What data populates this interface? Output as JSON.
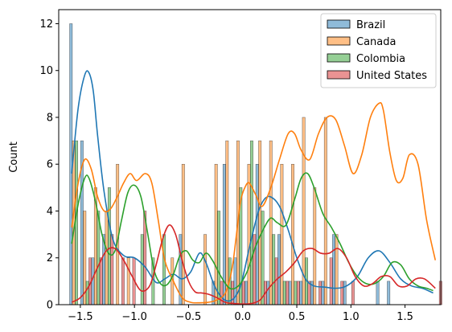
{
  "chart_data": {
    "type": "bar",
    "subtype": "histogram-with-kde",
    "title": "",
    "xlabel": "",
    "ylabel": "Count",
    "xlim": [
      -1.7,
      1.83
    ],
    "ylim": [
      0,
      12.6
    ],
    "xticks": [
      -1.5,
      -1.0,
      -0.5,
      0.0,
      0.5,
      1.0,
      1.5
    ],
    "xtick_labels": [
      "−1.5",
      "−1.0",
      "−0.5",
      "0.0",
      "0.5",
      "1.0",
      "1.5"
    ],
    "yticks": [
      0,
      2,
      4,
      6,
      8,
      10,
      12
    ],
    "ytick_labels": [
      "0",
      "2",
      "4",
      "6",
      "8",
      "10",
      "12"
    ],
    "grid": false,
    "legend_position": "top-right",
    "bin_edges": [
      -1.5993,
      -1.4981,
      -1.3969,
      -1.2957,
      -1.1945,
      -1.0933,
      -0.9921,
      -0.8909,
      -0.7897,
      -0.6885,
      -0.5873,
      -0.4861,
      -0.3849,
      -0.2837,
      -0.1825,
      -0.0813,
      0.0199,
      0.1211,
      0.2223,
      0.3235,
      0.4247,
      0.5259,
      0.6271,
      0.7283,
      0.8295,
      0.9307,
      1.0319,
      1.1331,
      1.2343,
      1.3355,
      1.4367,
      1.5379,
      1.6391,
      1.7403,
      1.8415
    ],
    "series": [
      {
        "name": "Brazil",
        "color": "#1f77b4",
        "values": [
          12,
          7,
          2,
          3,
          0,
          0,
          0,
          0,
          0,
          0,
          3,
          0,
          0,
          1,
          6,
          2,
          1,
          6,
          1,
          3,
          1,
          1,
          1,
          1,
          3,
          1,
          0,
          0,
          1,
          1,
          0,
          0,
          0,
          0
        ]
      },
      {
        "name": "Canada",
        "color": "#ff7f0e",
        "values": [
          7,
          4,
          5,
          4,
          6,
          2,
          0,
          0,
          0,
          2,
          6,
          0,
          3,
          6,
          7,
          7,
          6,
          7,
          7,
          6,
          6,
          8,
          5,
          8,
          3,
          0,
          0,
          0,
          0,
          0,
          0,
          0,
          0,
          0
        ]
      },
      {
        "name": "Colombia",
        "color": "#2ca02c",
        "values": [
          7,
          1,
          4,
          5,
          0,
          0,
          3,
          2,
          3,
          0,
          0,
          0,
          0,
          4,
          2,
          5,
          7,
          4,
          3,
          1,
          1,
          2,
          0,
          0,
          0,
          0,
          0,
          0,
          0,
          0,
          0,
          0,
          0,
          0
        ]
      },
      {
        "name": "United States",
        "color": "#d62728",
        "values": [
          0,
          2,
          2,
          3,
          2,
          2,
          4,
          0,
          0,
          0,
          0,
          0,
          0,
          1,
          1,
          1,
          3,
          1,
          2,
          1,
          1,
          1,
          1,
          2,
          1,
          1,
          0,
          0,
          0,
          0,
          0,
          0,
          0,
          1
        ]
      }
    ],
    "kde": [
      {
        "name": "Brazil",
        "x": [
          -1.58,
          -1.52,
          -1.46,
          -1.42,
          -1.38,
          -1.34,
          -1.28,
          -1.2,
          -1.1,
          -1.0,
          -0.9,
          -0.8,
          -0.72,
          -0.64,
          -0.56,
          -0.48,
          -0.4,
          -0.34,
          -0.26,
          -0.18,
          -0.1,
          -0.02,
          0.06,
          0.14,
          0.2,
          0.26,
          0.34,
          0.42,
          0.5,
          0.58,
          0.66,
          0.76,
          0.86,
          0.96,
          1.06,
          1.16,
          1.26,
          1.36,
          1.46,
          1.56,
          1.66,
          1.76
        ],
        "y": [
          5.6,
          8.4,
          9.8,
          9.9,
          9.1,
          7.2,
          4.8,
          2.8,
          2.1,
          2.0,
          1.6,
          0.95,
          1.1,
          1.3,
          1.1,
          1.4,
          2.2,
          1.8,
          0.8,
          0.25,
          0.2,
          0.8,
          2.4,
          3.9,
          4.5,
          4.6,
          4.2,
          3.2,
          2.0,
          1.1,
          0.8,
          0.75,
          0.7,
          0.8,
          1.2,
          2.0,
          2.3,
          1.8,
          1.1,
          0.8,
          0.7,
          0.5
        ]
      },
      {
        "name": "Canada",
        "x": [
          -1.58,
          -1.52,
          -1.46,
          -1.4,
          -1.34,
          -1.28,
          -1.22,
          -1.16,
          -1.1,
          -1.04,
          -0.98,
          -0.9,
          -0.84,
          -0.78,
          -0.72,
          -0.64,
          -0.56,
          -0.48,
          -0.4,
          -0.32,
          -0.24,
          -0.16,
          -0.1,
          -0.06,
          -0.02,
          0.02,
          0.06,
          0.12,
          0.18,
          0.26,
          0.34,
          0.42,
          0.48,
          0.54,
          0.62,
          0.7,
          0.78,
          0.86,
          0.94,
          1.02,
          1.1,
          1.18,
          1.26,
          1.3,
          1.36,
          1.42,
          1.48,
          1.54,
          1.62,
          1.7,
          1.78
        ],
        "y": [
          3.3,
          5.2,
          6.2,
          5.8,
          4.6,
          4.0,
          4.1,
          4.6,
          5.2,
          5.6,
          5.3,
          5.6,
          5.2,
          3.6,
          1.9,
          1.0,
          0.3,
          0.1,
          0.08,
          0.1,
          0.2,
          0.5,
          1.5,
          2.9,
          4.4,
          5.0,
          5.2,
          4.7,
          4.2,
          5.0,
          6.2,
          7.3,
          7.3,
          6.6,
          6.2,
          7.3,
          8.0,
          7.9,
          6.8,
          5.6,
          6.4,
          8.0,
          8.6,
          8.3,
          6.5,
          5.3,
          5.4,
          6.4,
          6.0,
          3.6,
          1.9
        ]
      },
      {
        "name": "Colombia",
        "x": [
          -1.58,
          -1.52,
          -1.46,
          -1.42,
          -1.36,
          -1.3,
          -1.24,
          -1.18,
          -1.12,
          -1.06,
          -1.0,
          -0.94,
          -0.88,
          -0.82,
          -0.76,
          -0.7,
          -0.64,
          -0.58,
          -0.52,
          -0.46,
          -0.4,
          -0.34,
          -0.28,
          -0.2,
          -0.12,
          -0.04,
          0.04,
          0.12,
          0.2,
          0.26,
          0.32,
          0.4,
          0.48,
          0.54,
          0.6,
          0.66,
          0.74,
          0.82,
          0.9,
          0.98,
          1.06,
          1.14,
          1.22,
          1.3,
          1.38,
          1.46,
          1.54,
          1.62,
          1.7,
          1.76
        ],
        "y": [
          2.6,
          4.3,
          5.4,
          5.4,
          4.4,
          3.0,
          2.2,
          2.3,
          3.6,
          4.8,
          5.1,
          4.6,
          3.1,
          1.5,
          0.9,
          0.85,
          1.3,
          2.1,
          2.3,
          1.9,
          1.8,
          2.2,
          1.9,
          1.2,
          0.7,
          0.8,
          1.4,
          2.5,
          3.3,
          3.7,
          3.5,
          3.4,
          4.5,
          5.4,
          5.6,
          5.0,
          3.9,
          3.3,
          2.6,
          1.8,
          1.2,
          0.9,
          0.9,
          1.2,
          1.8,
          1.7,
          1.1,
          0.8,
          0.7,
          0.6
        ]
      },
      {
        "name": "United States",
        "x": [
          -1.58,
          -1.5,
          -1.42,
          -1.34,
          -1.26,
          -1.18,
          -1.1,
          -1.02,
          -0.94,
          -0.86,
          -0.8,
          -0.74,
          -0.68,
          -0.62,
          -0.56,
          -0.5,
          -0.44,
          -0.38,
          -0.32,
          -0.24,
          -0.16,
          -0.08,
          0.0,
          0.08,
          0.16,
          0.24,
          0.32,
          0.4,
          0.48,
          0.56,
          0.64,
          0.72,
          0.8,
          0.88,
          0.96,
          1.04,
          1.12,
          1.2,
          1.28,
          1.36,
          1.44,
          1.52,
          1.6,
          1.68,
          1.78
        ],
        "y": [
          0.1,
          0.3,
          0.8,
          1.6,
          2.3,
          2.4,
          1.9,
          1.2,
          0.6,
          0.8,
          1.7,
          2.8,
          3.4,
          3.0,
          1.9,
          1.0,
          0.55,
          0.5,
          0.45,
          0.3,
          0.1,
          0.05,
          0.03,
          0.05,
          0.2,
          0.7,
          1.1,
          1.4,
          1.8,
          2.3,
          2.4,
          2.2,
          2.2,
          2.4,
          2.0,
          1.2,
          0.8,
          0.9,
          1.2,
          1.2,
          0.8,
          0.8,
          1.1,
          1.1,
          0.7
        ]
      }
    ]
  }
}
